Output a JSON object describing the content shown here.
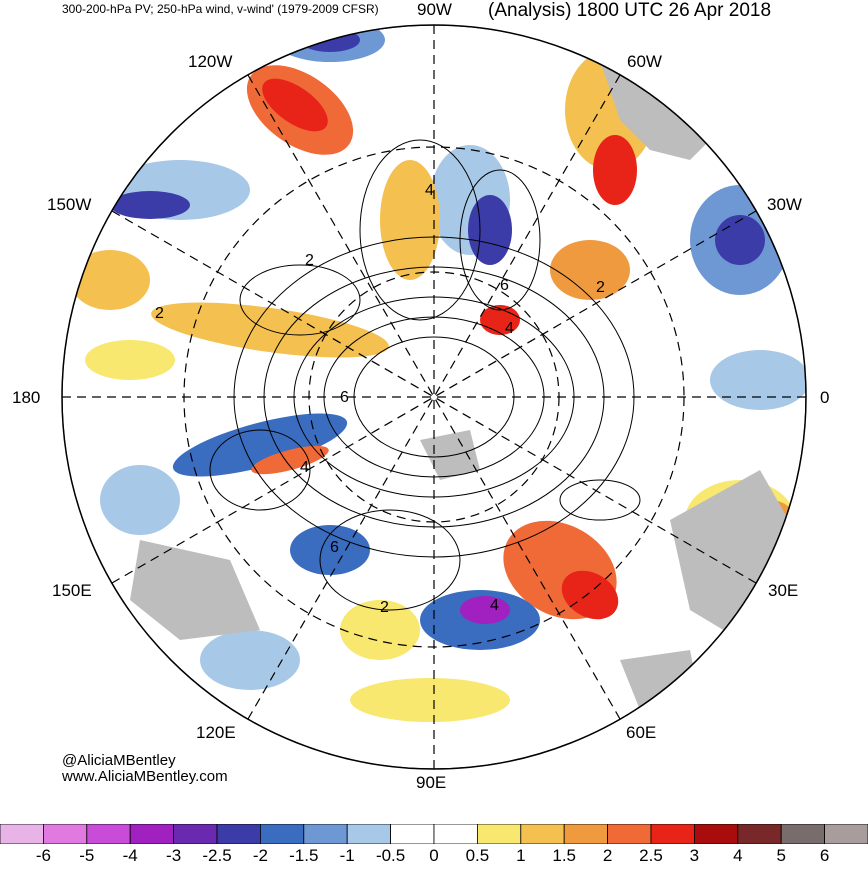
{
  "header": {
    "left": "300-200-hPa PV; 250-hPa wind, v-wind' (1979-2009 CFSR)",
    "right": "(Analysis) 1800 UTC 26 Apr 2018"
  },
  "lon_labels": {
    "top": "90W",
    "bottom": "90E",
    "left": "180",
    "right": "0",
    "ul1": "120W",
    "ul2": "150W",
    "ur1": "60W",
    "ur2": "30W",
    "ll1": "150E",
    "ll2": "120E",
    "lr1": "30E",
    "lr2": "60E"
  },
  "contour_labels": [
    "4",
    "6",
    "4",
    "2",
    "2",
    "6",
    "4",
    "6",
    "2",
    "4",
    "2"
  ],
  "credit": {
    "line1": "@AliciaMBentley",
    "line2": "www.AliciaMBentley.com"
  },
  "colorbar": {
    "ticks": [
      "-6",
      "-5",
      "-4",
      "-3",
      "-2.5",
      "-2",
      "-1.5",
      "-1",
      "-0.5",
      "0",
      "0.5",
      "1",
      "1.5",
      "2",
      "2.5",
      "3",
      "4",
      "5",
      "6"
    ],
    "colors": [
      "#e8b4e8",
      "#e07ae0",
      "#c84cd8",
      "#a020c0",
      "#6a2ab0",
      "#3c3ca8",
      "#3a6cc0",
      "#6e98d4",
      "#a8c8e8",
      "#ffffff",
      "#ffffff",
      "#f8e870",
      "#f4c050",
      "#f09a40",
      "#f06a38",
      "#e82418",
      "#a80c0c",
      "#782828",
      "#786c6c",
      "#a89c9c"
    ]
  }
}
